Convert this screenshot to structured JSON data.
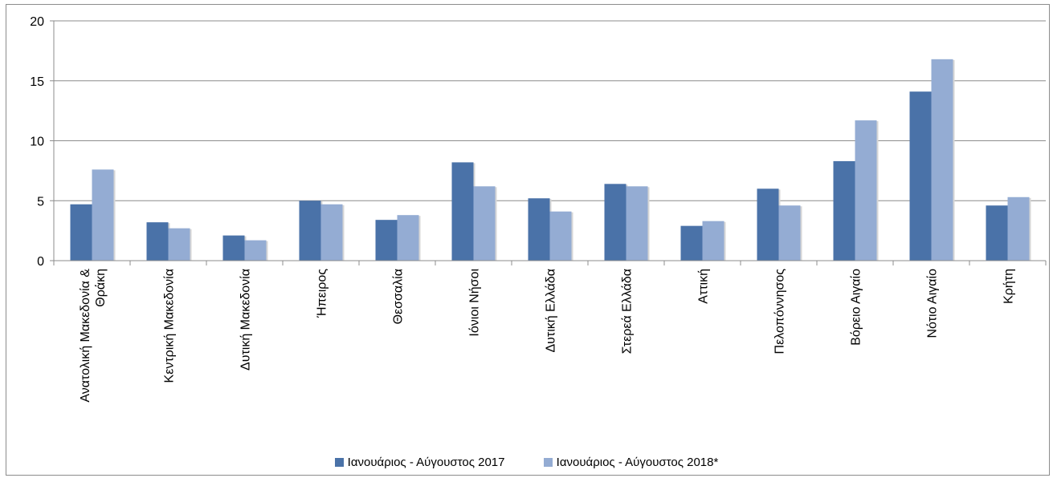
{
  "chart_data": {
    "type": "bar",
    "title": "",
    "xlabel": "",
    "ylabel": "",
    "ylim": [
      0,
      20
    ],
    "yticks": [
      "0",
      "5",
      "10",
      "15",
      "20"
    ],
    "grid": true,
    "legend_position": "bottom",
    "categories": [
      [
        "Ανατολική Μακεδονία &",
        "Θράκη"
      ],
      [
        "Κεντρική Μακεδονία"
      ],
      [
        "Δυτική Μακεδονία"
      ],
      [
        "Ήπειρος"
      ],
      [
        "Θεσσαλία"
      ],
      [
        "Ιόνιοι Νήσοι"
      ],
      [
        "Δυτική Ελλάδα"
      ],
      [
        "Στερεά Ελλάδα"
      ],
      [
        "Αττική"
      ],
      [
        "Πελοπόννησος"
      ],
      [
        "Βόρειο Αιγαίο"
      ],
      [
        "Νότιο Αιγαίο"
      ],
      [
        "Κρήτη"
      ]
    ],
    "series": [
      {
        "name": "Ιανουάριος - Αύγουστος 2017",
        "color": "#4a72a8",
        "values": [
          4.7,
          3.2,
          2.1,
          5.0,
          3.4,
          8.2,
          5.2,
          6.4,
          2.9,
          6.0,
          8.3,
          14.1,
          4.6
        ]
      },
      {
        "name": "Ιανουάριος - Αύγουστος 2018*",
        "color": "#94acd3",
        "values": [
          7.6,
          2.7,
          1.7,
          4.7,
          3.8,
          6.2,
          4.1,
          6.2,
          3.3,
          4.6,
          11.7,
          16.8,
          5.3
        ]
      }
    ]
  }
}
